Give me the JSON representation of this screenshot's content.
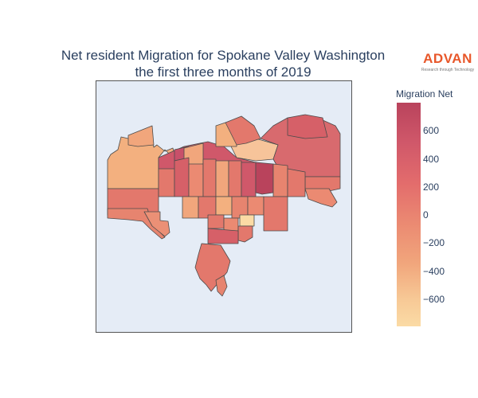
{
  "title_line1": "Net resident Migration for Spokane Valley Washington",
  "title_line2": "the first three months of 2019",
  "logo": {
    "word": "ADVAN",
    "tagline": "Research through Technology",
    "color": "#e8572a"
  },
  "colorbar": {
    "title": "Migration Net",
    "ticks": [
      "600",
      "400",
      "200",
      "0",
      "−200",
      "−400",
      "−600"
    ],
    "scale": [
      "#fbdba5",
      "#f7c996",
      "#f1a67c",
      "#eb8a72",
      "#e36c6c",
      "#d0586a",
      "#b9435c"
    ],
    "range": [
      -780,
      780
    ]
  },
  "map_background": "#e5ecf6"
}
